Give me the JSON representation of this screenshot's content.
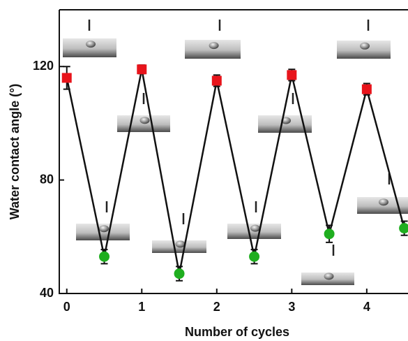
{
  "chart_data": {
    "type": "line",
    "x_label": "Number of cycles",
    "y_label": "Water contact angle (°)",
    "x": [
      0,
      0.5,
      1,
      1.5,
      2,
      2.5,
      3,
      3.5,
      4,
      4.5
    ],
    "values": [
      116,
      53,
      119,
      47,
      115,
      53,
      117,
      61,
      112,
      63
    ],
    "errors": [
      4,
      2.5,
      1.5,
      2.5,
      2,
      2.5,
      2,
      3,
      2,
      2.5
    ],
    "colors": [
      "#e8141b",
      "#1fae1f",
      "#e8141b",
      "#1fae1f",
      "#e8141b",
      "#1fae1f",
      "#e8141b",
      "#1fae1f",
      "#e8141b",
      "#1fae1f"
    ],
    "markers": [
      "square",
      "circle",
      "square",
      "circle",
      "square",
      "circle",
      "square",
      "circle",
      "square",
      "circle"
    ],
    "line_color": "#111111",
    "xlim": [
      -0.1,
      4.55
    ],
    "ylim": [
      40,
      140
    ],
    "xticks": [
      0,
      1,
      2,
      3,
      4
    ],
    "yticks": [
      40,
      80,
      120
    ]
  }
}
